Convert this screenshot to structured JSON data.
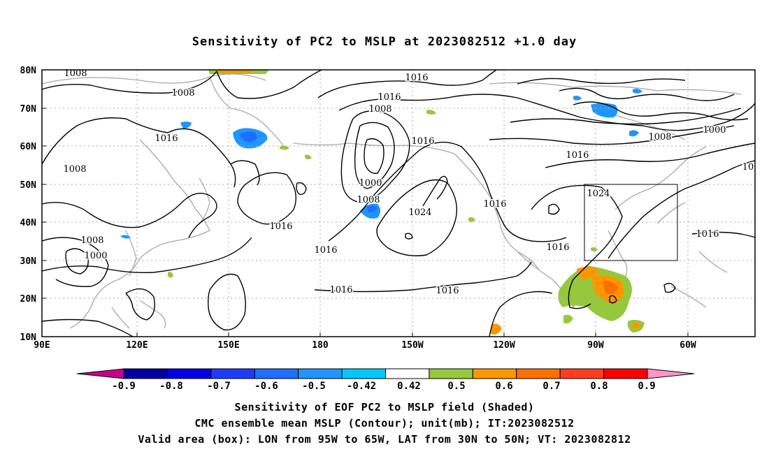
{
  "title": "Sensitivity of PC2 to MSLP at 2023082512 +1.0 day",
  "map": {
    "lat_labels": [
      "80N",
      "70N",
      "60N",
      "50N",
      "40N",
      "30N",
      "20N",
      "10N"
    ],
    "lon_labels": [
      "90E",
      "120E",
      "150E",
      "180",
      "150W",
      "120W",
      "90W",
      "60W"
    ],
    "contour_labels": [
      {
        "text": "1008"
      },
      {
        "text": "1008"
      },
      {
        "text": "1016"
      },
      {
        "text": "1008"
      },
      {
        "text": "1008"
      },
      {
        "text": "1000"
      },
      {
        "text": "1016"
      },
      {
        "text": "1016"
      },
      {
        "text": "1016"
      },
      {
        "text": "1008"
      },
      {
        "text": "1016"
      },
      {
        "text": "1000"
      },
      {
        "text": "1008"
      },
      {
        "text": "1016"
      },
      {
        "text": "1024"
      },
      {
        "text": "1016"
      },
      {
        "text": "1016"
      },
      {
        "text": "1016"
      },
      {
        "text": "1016"
      },
      {
        "text": "1008"
      },
      {
        "text": "1000"
      },
      {
        "text": "1016"
      },
      {
        "text": "1024"
      },
      {
        "text": "1016"
      },
      {
        "text": "1016"
      },
      {
        "text": "10"
      }
    ],
    "valid_box": {
      "lon_range": "95W to 65W",
      "lat_range": "30N to 50N"
    }
  },
  "colorbar": {
    "labels": [
      "-0.9",
      "-0.8",
      "-0.7",
      "-0.6",
      "-0.5",
      "-0.42",
      "0.42",
      "0.5",
      "0.6",
      "0.7",
      "0.8",
      "0.9"
    ],
    "colors": [
      "#c8008c",
      "#0000a0",
      "#0000e6",
      "#1e3cff",
      "#1e6eff",
      "#1e96ff",
      "#00c8ff",
      "#ffffff",
      "#96c83c",
      "#ff9600",
      "#ff6e00",
      "#ff3c1e",
      "#ff0000",
      "#ff96c8"
    ]
  },
  "captions": {
    "line1": "Sensitivity of EOF PC2 to MSLP field (Shaded)",
    "line2": "CMC ensemble mean MSLP (Contour); unit(mb); IT:2023082512",
    "line3": "Valid area (box): LON from 95W to 65W, LAT from 30N to 50N; VT: 2023082812"
  }
}
